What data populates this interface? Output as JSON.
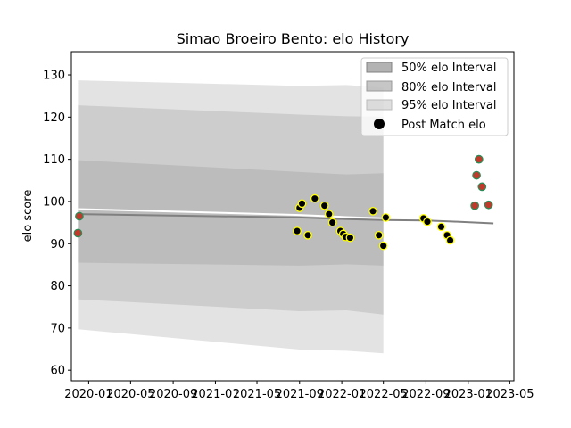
{
  "chart_data": {
    "type": "line",
    "title": "Simao Broeiro Bento: elo History",
    "xlabel": "",
    "ylabel": "elo score",
    "ylim": [
      57.5,
      135.5
    ],
    "xlim": [
      "2019-11-12",
      "2023-05-13"
    ],
    "yticks": [
      60,
      70,
      80,
      90,
      100,
      110,
      120,
      130
    ],
    "xticks": [
      "2020-01",
      "2020-05",
      "2020-09",
      "2021-01",
      "2021-05",
      "2021-09",
      "2022-01",
      "2022-05",
      "2022-09",
      "2023-01",
      "2023-05"
    ],
    "grid": false,
    "legend_position": "top-right",
    "legend": [
      {
        "label": "50% elo Interval",
        "kind": "band50"
      },
      {
        "label": "80% elo Interval",
        "kind": "band80"
      },
      {
        "label": "95% elo Interval",
        "kind": "band95"
      },
      {
        "label": "Post Match elo",
        "kind": "marker"
      }
    ],
    "colors": {
      "band": "#808080",
      "mean_line": "#808080",
      "white_line": "#ffffff",
      "marker_fill": "#000000",
      "marker_edge_main": "#ffff00",
      "marker_fill_alt": "#808080",
      "marker_edge_alt": "#2e8b57",
      "marker_inner_alt": "#c0392b"
    },
    "expected_line": {
      "name": "Expected elo",
      "x": [
        "2019-12-01",
        "2021-09-01",
        "2022-01-15",
        "2022-05-01",
        "2022-09-01",
        "2022-12-01",
        "2023-03-15"
      ],
      "y": [
        97,
        96.2,
        95.8,
        95.6,
        95.5,
        95.2,
        94.8
      ]
    },
    "history_line": {
      "name": "Historic elo",
      "x": [
        "2019-12-01",
        "2021-09-01",
        "2022-01-15",
        "2022-05-01"
      ],
      "y": [
        98.2,
        96.8,
        96.3,
        96.0
      ]
    },
    "bands": {
      "x": [
        "2019-12-01",
        "2021-09-01",
        "2022-01-15",
        "2022-05-01"
      ],
      "band50_low": [
        85.5,
        84.8,
        85.1,
        84.8
      ],
      "band50_high": [
        109.8,
        107.0,
        106.4,
        106.7
      ],
      "band80_low": [
        76.8,
        74.0,
        74.2,
        73.2
      ],
      "band80_high": [
        122.8,
        120.6,
        120.2,
        120.1
      ],
      "band95_low": [
        69.7,
        64.9,
        64.6,
        64.0
      ],
      "band95_high": [
        128.7,
        127.4,
        127.6,
        127.0
      ]
    },
    "post_match_points": [
      {
        "x": "2019-12-01",
        "y": 92.5,
        "style": "alt"
      },
      {
        "x": "2019-12-05",
        "y": 96.5,
        "style": "alt"
      },
      {
        "x": "2021-08-25",
        "y": 93.0,
        "style": "main"
      },
      {
        "x": "2021-09-01",
        "y": 98.5,
        "style": "main"
      },
      {
        "x": "2021-09-08",
        "y": 99.5,
        "style": "main"
      },
      {
        "x": "2021-09-25",
        "y": 92.0,
        "style": "main"
      },
      {
        "x": "2021-10-15",
        "y": 100.7,
        "style": "main"
      },
      {
        "x": "2021-11-12",
        "y": 99.0,
        "style": "main"
      },
      {
        "x": "2021-11-25",
        "y": 97.0,
        "style": "main"
      },
      {
        "x": "2021-12-05",
        "y": 95.0,
        "style": "main"
      },
      {
        "x": "2021-12-28",
        "y": 93.0,
        "style": "main"
      },
      {
        "x": "2022-01-05",
        "y": 92.3,
        "style": "main"
      },
      {
        "x": "2022-01-12",
        "y": 91.6,
        "style": "main"
      },
      {
        "x": "2022-01-25",
        "y": 91.4,
        "style": "main"
      },
      {
        "x": "2022-04-01",
        "y": 97.7,
        "style": "main"
      },
      {
        "x": "2022-04-18",
        "y": 92.0,
        "style": "main"
      },
      {
        "x": "2022-05-01",
        "y": 89.5,
        "style": "main"
      },
      {
        "x": "2022-05-08",
        "y": 96.2,
        "style": "main"
      },
      {
        "x": "2022-08-25",
        "y": 96.0,
        "style": "main"
      },
      {
        "x": "2022-09-05",
        "y": 95.2,
        "style": "main"
      },
      {
        "x": "2022-10-15",
        "y": 94.0,
        "style": "main"
      },
      {
        "x": "2022-11-01",
        "y": 92.0,
        "style": "main"
      },
      {
        "x": "2022-11-10",
        "y": 90.8,
        "style": "main"
      },
      {
        "x": "2023-01-20",
        "y": 99.0,
        "style": "alt"
      },
      {
        "x": "2023-01-25",
        "y": 106.2,
        "style": "alt"
      },
      {
        "x": "2023-02-01",
        "y": 110.0,
        "style": "alt"
      },
      {
        "x": "2023-02-10",
        "y": 103.5,
        "style": "alt"
      },
      {
        "x": "2023-03-01",
        "y": 99.2,
        "style": "alt"
      }
    ]
  }
}
